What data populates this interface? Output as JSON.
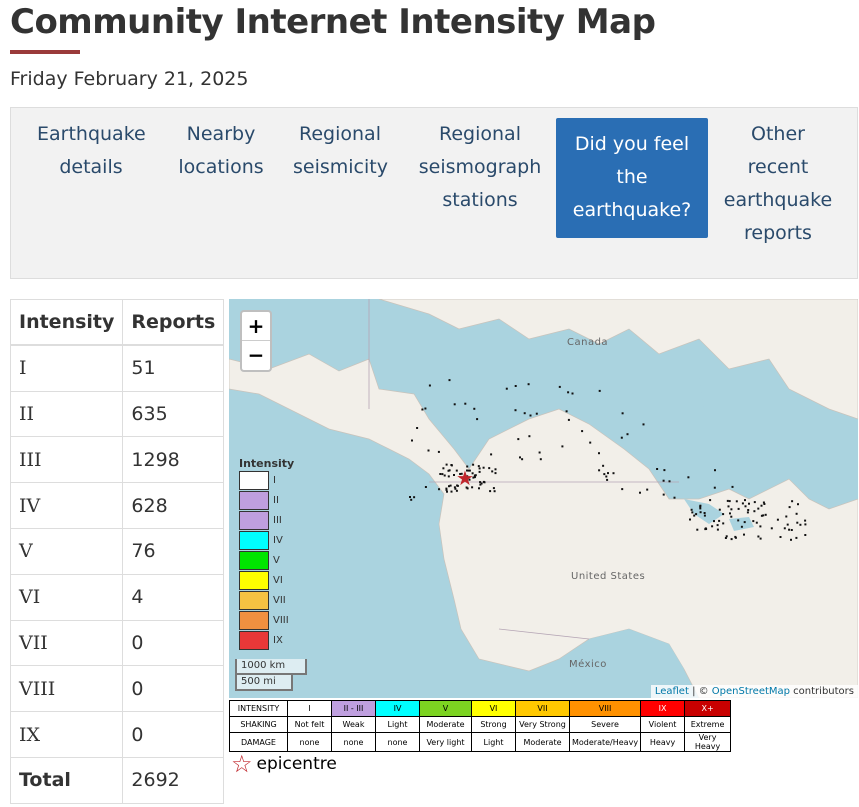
{
  "page": {
    "title": "Community Internet Intensity Map",
    "date": "Friday February 21, 2025"
  },
  "nav": [
    {
      "label_lines": [
        "Earthquake",
        "details"
      ],
      "active": false
    },
    {
      "label_lines": [
        "Nearby",
        "locations"
      ],
      "active": false
    },
    {
      "label_lines": [
        "Regional",
        "seismicity"
      ],
      "active": false
    },
    {
      "label_lines": [
        "Regional",
        "seismograph",
        "stations"
      ],
      "active": false
    },
    {
      "label_lines": [
        "Did you feel",
        "the",
        "earthquake?"
      ],
      "active": true
    },
    {
      "label_lines": [
        "Other",
        "recent",
        "earthquake",
        "reports"
      ],
      "active": false
    }
  ],
  "report_table": {
    "headers": [
      "Intensity",
      "Reports"
    ],
    "rows": [
      {
        "intensity": "I",
        "reports": "51"
      },
      {
        "intensity": "II",
        "reports": "635"
      },
      {
        "intensity": "III",
        "reports": "1298"
      },
      {
        "intensity": "IV",
        "reports": "628"
      },
      {
        "intensity": "V",
        "reports": "76"
      },
      {
        "intensity": "VI",
        "reports": "4"
      },
      {
        "intensity": "VII",
        "reports": "0"
      },
      {
        "intensity": "VIII",
        "reports": "0"
      },
      {
        "intensity": "IX",
        "reports": "0"
      }
    ],
    "total_label": "Total",
    "total_value": "2692"
  },
  "map": {
    "zoom_in": "+",
    "zoom_out": "−",
    "labels": {
      "canada": "Canada",
      "usa": "United States",
      "mexico": "México"
    },
    "legend_title": "Intensity",
    "legend": [
      {
        "label": "I",
        "color": "#ffffff"
      },
      {
        "label": "II",
        "color": "#bf9fdf"
      },
      {
        "label": "III",
        "color": "#bf9fdf"
      },
      {
        "label": "IV",
        "color": "#00ffff"
      },
      {
        "label": "V",
        "color": "#00e600"
      },
      {
        "label": "VI",
        "color": "#ffff00"
      },
      {
        "label": "VII",
        "color": "#f5c242"
      },
      {
        "label": "VIII",
        "color": "#f09040"
      },
      {
        "label": "IX",
        "color": "#e83838"
      }
    ],
    "scale_km": "1000 km",
    "scale_mi": "500 mi",
    "attribution": {
      "leaflet": "Leaflet",
      "separator": " | © ",
      "osm": "OpenStreetMap",
      "suffix": " contributors"
    }
  },
  "intensity_scale": {
    "header_label": "INTENSITY",
    "shaking_label": "SHAKING",
    "damage_label": "DAMAGE",
    "columns": [
      {
        "intensity": "I",
        "shaking": "Not felt",
        "damage": "none",
        "color": "#ffffff"
      },
      {
        "intensity": "II - III",
        "shaking": "Weak",
        "damage": "none",
        "color": "#bf9fdf"
      },
      {
        "intensity": "IV",
        "shaking": "Light",
        "damage": "none",
        "color": "#00ffff"
      },
      {
        "intensity": "V",
        "shaking": "Moderate",
        "damage": "Very light",
        "color": "#7cd321"
      },
      {
        "intensity": "VI",
        "shaking": "Strong",
        "damage": "Light",
        "color": "#ffff00"
      },
      {
        "intensity": "VII",
        "shaking": "Very Strong",
        "damage": "Moderate",
        "color": "#ffc800"
      },
      {
        "intensity": "VIII",
        "shaking": "Severe",
        "damage": "Moderate/Heavy",
        "color": "#ff9100"
      },
      {
        "intensity": "IX",
        "shaking": "Violent",
        "damage": "Heavy",
        "color": "#ff0000"
      },
      {
        "intensity": "X+",
        "shaking": "Extreme",
        "damage": "Very Heavy",
        "color": "#c80000"
      }
    ]
  },
  "epicentre_label": "epicentre"
}
